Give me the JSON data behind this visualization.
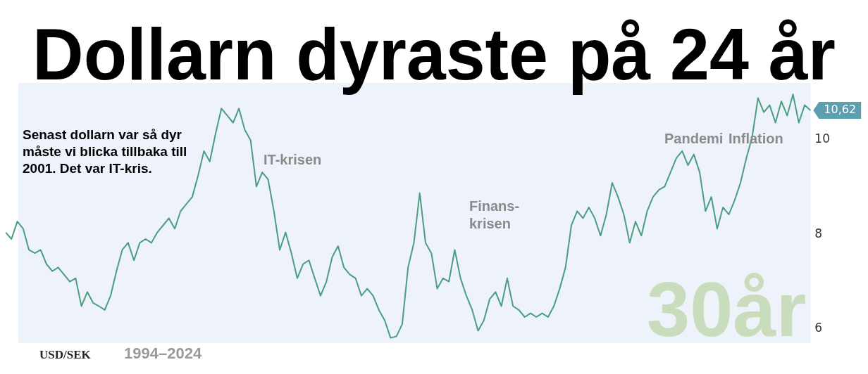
{
  "chart_data": {
    "type": "line",
    "title": "Dollarn dyraste på 24 år",
    "categories": [
      null,
      null,
      null,
      null,
      null,
      null,
      null,
      null,
      null,
      null,
      null,
      null,
      null,
      null,
      null,
      null,
      null,
      null,
      null,
      null,
      null,
      null,
      null,
      null,
      null,
      null,
      null,
      null,
      null,
      null,
      null,
      null,
      null,
      null,
      null,
      null,
      null,
      null,
      null,
      null,
      null,
      null,
      null,
      null,
      null,
      null,
      null,
      null,
      null,
      null,
      null,
      null,
      null,
      null,
      null,
      null,
      null,
      null,
      null,
      null,
      null,
      null,
      null,
      null,
      null,
      null,
      null,
      null,
      null,
      null,
      null,
      null,
      null,
      null,
      null,
      null,
      null,
      null,
      null,
      null,
      null,
      null,
      null,
      null,
      null,
      null,
      null,
      null,
      null,
      null,
      null,
      null,
      null,
      null,
      null,
      null,
      null,
      null,
      null,
      null,
      null,
      null,
      null,
      null,
      null,
      null,
      null,
      null,
      null,
      null,
      null,
      null,
      null,
      null,
      null,
      null,
      null,
      null,
      null,
      null,
      null,
      null,
      null,
      null,
      null,
      null,
      null,
      null,
      null,
      null,
      null,
      null,
      null,
      null,
      null,
      null,
      null,
      null,
      null
    ],
    "series": [
      {
        "color": "#4a9e80",
        "values": [
          8.04,
          7.9,
          8.27,
          8.12,
          7.67,
          7.6,
          7.67,
          7.37,
          7.22,
          7.3,
          7.15,
          7.0,
          7.07,
          6.48,
          6.78,
          6.55,
          6.48,
          6.4,
          6.7,
          7.22,
          7.67,
          7.82,
          7.45,
          7.82,
          7.9,
          7.82,
          8.04,
          8.19,
          8.34,
          8.12,
          8.49,
          8.64,
          8.79,
          9.24,
          9.76,
          9.54,
          10.13,
          10.66,
          10.51,
          10.36,
          10.66,
          10.21,
          9.99,
          9.01,
          9.31,
          9.16,
          8.49,
          7.67,
          8.04,
          7.6,
          7.07,
          7.37,
          7.45,
          7.07,
          6.7,
          7.0,
          7.52,
          7.75,
          7.3,
          7.15,
          7.07,
          6.7,
          6.85,
          6.7,
          6.4,
          6.18,
          5.81,
          5.84,
          6.1,
          7.3,
          7.82,
          8.87,
          7.82,
          7.6,
          6.85,
          7.07,
          7.0,
          7.67,
          7.07,
          6.7,
          6.4,
          5.96,
          6.18,
          6.63,
          6.78,
          6.48,
          7.07,
          6.48,
          6.4,
          6.25,
          6.33,
          6.25,
          6.33,
          6.25,
          6.48,
          6.85,
          7.3,
          8.19,
          8.49,
          8.34,
          8.57,
          8.34,
          7.97,
          8.42,
          9.09,
          8.79,
          8.42,
          7.82,
          8.27,
          7.97,
          8.49,
          8.79,
          8.94,
          9.01,
          9.31,
          9.61,
          9.76,
          9.46,
          9.69,
          9.31,
          8.49,
          8.79,
          8.12,
          8.57,
          8.42,
          8.72,
          9.09,
          9.61,
          10.06,
          10.88,
          10.58,
          10.73,
          10.36,
          10.81,
          10.51,
          10.96,
          10.36,
          10.73,
          10.62
        ],
        "value_labels": [
          null,
          null,
          null,
          null,
          null,
          null,
          null,
          null,
          null,
          null,
          null,
          null,
          null,
          null,
          null,
          null,
          null,
          null,
          null,
          null,
          null,
          null,
          null,
          null,
          null,
          null,
          null,
          null,
          null,
          null,
          null,
          null,
          null,
          null,
          null,
          null,
          null,
          null,
          null,
          null,
          null,
          null,
          null,
          null,
          null,
          null,
          null,
          null,
          null,
          null,
          null,
          null,
          null,
          null,
          null,
          null,
          null,
          null,
          null,
          null,
          null,
          null,
          null,
          null,
          null,
          null,
          null,
          null,
          null,
          null,
          null,
          null,
          null,
          null,
          null,
          null,
          null,
          null,
          null,
          null,
          null,
          null,
          null,
          null,
          null,
          null,
          null,
          null,
          null,
          null,
          null,
          null,
          null,
          null,
          null,
          null,
          null,
          null,
          null,
          null,
          null,
          null,
          null,
          null,
          null,
          null,
          null,
          null,
          null,
          null,
          null,
          null,
          null,
          null,
          null,
          null,
          null,
          null,
          null,
          null,
          null,
          null,
          null,
          null,
          null,
          null,
          null,
          null,
          null,
          null,
          null,
          null,
          null,
          null,
          null,
          null,
          null,
          null,
          "10,62"
        ]
      }
    ],
    "ylim": [
      5.7,
      11.2
    ],
    "yticks": [
      6,
      8,
      10
    ],
    "tick_labels": "y",
    "grid": false,
    "legend": false,
    "marker": "none",
    "line_style": "solid",
    "annotations": [
      "Senast dollarn var så dyr måste vi blicka tillbaka till 2001. Det var IT-kris.",
      "IT-krisen",
      "Finans-krisen",
      "Pandemi",
      "Inflation",
      "USD/SEK",
      "1994–2024",
      "30år"
    ]
  }
}
